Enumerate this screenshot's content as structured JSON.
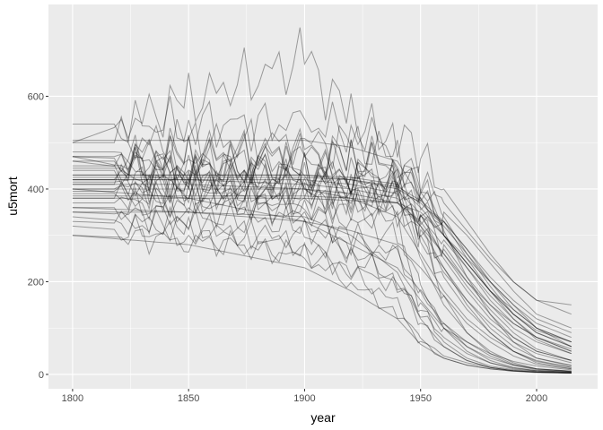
{
  "chart_data": {
    "type": "line",
    "title": "",
    "xlabel": "year",
    "ylabel": "u5mort",
    "xlim": [
      1789.6,
      2026.3
    ],
    "ylim": [
      -31,
      798
    ],
    "x_ticks": [
      1800,
      1850,
      1900,
      1950,
      2000
    ],
    "y_ticks": [
      0,
      200,
      400,
      600
    ],
    "grid": true,
    "legend": "none",
    "line_color": "#000000",
    "line_opacity": 0.35,
    "panel_background": "#EBEBEB",
    "x": [
      1800,
      1850,
      1900,
      1920,
      1940,
      1950,
      1960,
      1970,
      1980,
      1990,
      2000,
      2015
    ],
    "series": [
      {
        "values": [
          505,
          505,
          505,
          490,
          460,
          380,
          300,
          230,
          160,
          110,
          80,
          50
        ]
      },
      {
        "values": [
          500,
          500,
          500,
          495,
          470,
          420,
          340,
          260,
          190,
          130,
          90,
          60
        ]
      },
      {
        "values": [
          470,
          460,
          420,
          400,
          380,
          300,
          210,
          140,
          90,
          50,
          25,
          12
        ]
      },
      {
        "values": [
          420,
          420,
          420,
          410,
          390,
          250,
          150,
          90,
          50,
          25,
          12,
          6
        ]
      },
      {
        "values": [
          410,
          410,
          410,
          400,
          380,
          300,
          220,
          160,
          110,
          70,
          45,
          25
        ]
      },
      {
        "values": [
          440,
          440,
          440,
          430,
          400,
          330,
          250,
          180,
          120,
          80,
          50,
          30
        ]
      },
      {
        "values": [
          400,
          400,
          400,
          390,
          370,
          320,
          260,
          200,
          150,
          110,
          80,
          50
        ]
      },
      {
        "values": [
          380,
          380,
          380,
          360,
          320,
          200,
          100,
          50,
          25,
          12,
          7,
          4
        ]
      },
      {
        "values": [
          360,
          360,
          360,
          340,
          300,
          150,
          70,
          35,
          18,
          10,
          6,
          4
        ]
      },
      {
        "values": [
          350,
          350,
          340,
          300,
          220,
          120,
          60,
          30,
          15,
          8,
          5,
          3
        ]
      },
      {
        "values": [
          330,
          320,
          280,
          220,
          150,
          80,
          40,
          25,
          15,
          8,
          5,
          3
        ]
      },
      {
        "values": [
          320,
          300,
          250,
          200,
          130,
          70,
          35,
          20,
          12,
          7,
          5,
          3
        ]
      },
      {
        "values": [
          300,
          280,
          230,
          180,
          120,
          65,
          35,
          20,
          12,
          7,
          4,
          3
        ]
      },
      {
        "values": [
          460,
          430,
          350,
          300,
          250,
          180,
          110,
          60,
          30,
          15,
          8,
          5
        ]
      },
      {
        "values": [
          470,
          420,
          330,
          270,
          200,
          110,
          60,
          30,
          15,
          8,
          5,
          3
        ]
      },
      {
        "values": [
          430,
          430,
          430,
          425,
          410,
          360,
          300,
          240,
          180,
          130,
          95,
          70
        ]
      },
      {
        "values": [
          420,
          420,
          420,
          415,
          400,
          380,
          330,
          270,
          210,
          160,
          120,
          90
        ]
      },
      {
        "values": [
          540,
          540,
          540,
          530,
          520,
          470,
          400,
          330,
          260,
          200,
          160,
          130
        ]
      },
      {
        "values": [
          380,
          380,
          380,
          375,
          370,
          350,
          300,
          250,
          200,
          150,
          110,
          80
        ]
      },
      {
        "values": [
          370,
          370,
          370,
          365,
          360,
          340,
          290,
          230,
          170,
          120,
          80,
          55
        ]
      },
      {
        "values": [
          460,
          460,
          460,
          455,
          440,
          400,
          330,
          250,
          180,
          120,
          75,
          45
        ]
      },
      {
        "values": [
          430,
          430,
          430,
          420,
          400,
          370,
          320,
          260,
          200,
          150,
          100,
          60
        ]
      },
      {
        "values": [
          400,
          400,
          400,
          395,
          380,
          340,
          270,
          200,
          140,
          90,
          55,
          30
        ]
      },
      {
        "values": [
          390,
          390,
          390,
          380,
          360,
          310,
          230,
          160,
          100,
          60,
          35,
          20
        ]
      },
      {
        "values": [
          410,
          410,
          400,
          380,
          340,
          260,
          180,
          120,
          80,
          50,
          30,
          15
        ]
      },
      {
        "values": [
          350,
          340,
          320,
          290,
          250,
          180,
          110,
          70,
          40,
          20,
          10,
          6
        ]
      },
      {
        "values": [
          340,
          320,
          290,
          260,
          200,
          130,
          80,
          45,
          25,
          14,
          8,
          5
        ]
      },
      {
        "values": [
          400,
          380,
          330,
          280,
          230,
          160,
          100,
          60,
          35,
          20,
          12,
          7
        ]
      },
      {
        "values": [
          450,
          450,
          450,
          440,
          420,
          390,
          350,
          300,
          240,
          180,
          130,
          100
        ]
      },
      {
        "values": [
          480,
          480,
          480,
          470,
          460,
          420,
          370,
          310,
          250,
          200,
          160,
          150
        ]
      },
      {
        "values": [
          420,
          420,
          410,
          400,
          380,
          320,
          230,
          150,
          90,
          50,
          28,
          15
        ]
      },
      {
        "values": [
          445,
          445,
          445,
          440,
          420,
          300,
          170,
          90,
          45,
          22,
          12,
          7
        ]
      },
      {
        "values": [
          470,
          470,
          470,
          465,
          450,
          400,
          310,
          210,
          130,
          70,
          35,
          18
        ]
      },
      {
        "values": [
          360,
          350,
          330,
          310,
          280,
          230,
          170,
          110,
          70,
          40,
          22,
          12
        ]
      },
      {
        "values": [
          300,
          290,
          260,
          230,
          190,
          140,
          100,
          70,
          45,
          28,
          18,
          10
        ]
      },
      {
        "values": [
          500,
          590,
          680,
          550,
          470,
          380,
          300,
          240,
          180,
          140,
          100,
          70
        ]
      },
      {
        "values": [
          385,
          385,
          385,
          380,
          370,
          330,
          260,
          190,
          130,
          80,
          50,
          30
        ]
      },
      {
        "values": [
          415,
          415,
          415,
          410,
          395,
          350,
          280,
          210,
          150,
          100,
          70,
          45
        ]
      },
      {
        "values": [
          395,
          395,
          395,
          390,
          375,
          345,
          300,
          240,
          180,
          130,
          90,
          60
        ]
      },
      {
        "values": [
          425,
          425,
          425,
          420,
          405,
          375,
          330,
          270,
          200,
          140,
          100,
          70
        ]
      }
    ]
  }
}
